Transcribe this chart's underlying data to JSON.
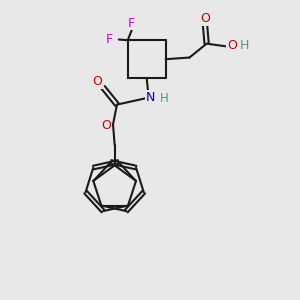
{
  "bg_color": "#e8e8e8",
  "bond_color": "#1a1a1a",
  "F_color": "#cc00cc",
  "O_color": "#cc0000",
  "N_color": "#0000cc",
  "H_color": "#4a9a7a",
  "lw": 1.5,
  "fs": 9.0,
  "xlim": [
    1.0,
    9.0
  ],
  "ylim": [
    0.5,
    9.5
  ]
}
